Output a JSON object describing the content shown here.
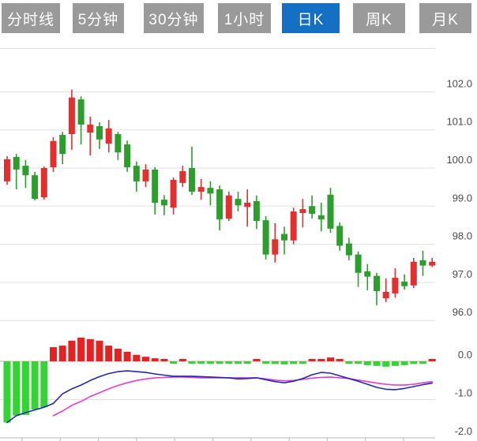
{
  "tabs": [
    {
      "label": "分时线",
      "active": false
    },
    {
      "label": "5分钟",
      "active": false
    },
    {
      "label": "30分钟",
      "active": false
    },
    {
      "label": "1小时",
      "active": false
    },
    {
      "label": "日K",
      "active": true
    },
    {
      "label": "周K",
      "active": false
    },
    {
      "label": "月K",
      "active": false
    }
  ],
  "colors": {
    "tab_bg": "#9a9a9a",
    "tab_active_bg": "#1570c4",
    "tab_text": "#ffffff",
    "up": "#e23030",
    "down": "#2d9e2d",
    "hist_up": "#e52222",
    "hist_down": "#35d435",
    "dif_line": "#2228b0",
    "dea_line": "#e03fd0",
    "grid": "#e0e0e0",
    "axis": "#b5b5b5",
    "zero_line": "#f0a4a4",
    "label_text": "#4a4a4a"
  },
  "chart_data": {
    "type": "candlestick+macd",
    "title": "",
    "price_axis": {
      "ticks": [
        102.0,
        101.0,
        100.0,
        99.0,
        98.0,
        97.0,
        96.0
      ],
      "side": "right"
    },
    "macd_axis": {
      "ticks": [
        0.0,
        -1.0,
        -2.0
      ],
      "side": "right"
    },
    "candles": [
      {
        "o": 99.65,
        "h": 100.31,
        "l": 99.56,
        "c": 100.23
      },
      {
        "o": 100.29,
        "h": 100.37,
        "l": 99.44,
        "c": 99.96
      },
      {
        "o": 100.06,
        "h": 100.21,
        "l": 99.48,
        "c": 99.81
      },
      {
        "o": 99.81,
        "h": 99.9,
        "l": 99.15,
        "c": 99.19
      },
      {
        "o": 99.23,
        "h": 100.04,
        "l": 99.17,
        "c": 100.0
      },
      {
        "o": 100.02,
        "h": 100.81,
        "l": 99.9,
        "c": 100.71
      },
      {
        "o": 100.87,
        "h": 100.95,
        "l": 100.1,
        "c": 100.37
      },
      {
        "o": 100.89,
        "h": 102.06,
        "l": 100.48,
        "c": 101.85
      },
      {
        "o": 101.8,
        "h": 101.88,
        "l": 100.62,
        "c": 101.14
      },
      {
        "o": 100.93,
        "h": 101.35,
        "l": 100.33,
        "c": 101.14
      },
      {
        "o": 101.1,
        "h": 101.2,
        "l": 100.5,
        "c": 100.75
      },
      {
        "o": 100.64,
        "h": 101.26,
        "l": 100.41,
        "c": 101.04
      },
      {
        "o": 100.89,
        "h": 100.95,
        "l": 100.21,
        "c": 100.41
      },
      {
        "o": 100.62,
        "h": 100.72,
        "l": 99.9,
        "c": 100.02
      },
      {
        "o": 100.06,
        "h": 100.17,
        "l": 99.38,
        "c": 99.65
      },
      {
        "o": 99.65,
        "h": 100.1,
        "l": 99.5,
        "c": 99.96
      },
      {
        "o": 99.96,
        "h": 100.02,
        "l": 98.78,
        "c": 99.09
      },
      {
        "o": 99.17,
        "h": 99.29,
        "l": 98.76,
        "c": 99.02
      },
      {
        "o": 98.96,
        "h": 99.75,
        "l": 98.78,
        "c": 99.69
      },
      {
        "o": 99.61,
        "h": 100.06,
        "l": 99.5,
        "c": 99.92
      },
      {
        "o": 100.0,
        "h": 100.56,
        "l": 99.29,
        "c": 99.38
      },
      {
        "o": 99.38,
        "h": 99.71,
        "l": 99.17,
        "c": 99.5
      },
      {
        "o": 99.48,
        "h": 99.65,
        "l": 99.02,
        "c": 99.33
      },
      {
        "o": 99.44,
        "h": 99.54,
        "l": 98.36,
        "c": 98.65
      },
      {
        "o": 98.67,
        "h": 99.38,
        "l": 98.61,
        "c": 99.28
      },
      {
        "o": 99.19,
        "h": 99.38,
        "l": 98.86,
        "c": 99.02
      },
      {
        "o": 98.98,
        "h": 99.44,
        "l": 98.46,
        "c": 99.09
      },
      {
        "o": 99.13,
        "h": 99.28,
        "l": 98.4,
        "c": 98.61
      },
      {
        "o": 98.63,
        "h": 98.74,
        "l": 97.6,
        "c": 97.73
      },
      {
        "o": 97.73,
        "h": 98.55,
        "l": 97.52,
        "c": 98.13
      },
      {
        "o": 98.27,
        "h": 98.46,
        "l": 97.73,
        "c": 98.1
      },
      {
        "o": 98.1,
        "h": 98.96,
        "l": 98.0,
        "c": 98.86
      },
      {
        "o": 98.82,
        "h": 99.19,
        "l": 98.44,
        "c": 98.92
      },
      {
        "o": 99.0,
        "h": 99.28,
        "l": 98.67,
        "c": 98.8
      },
      {
        "o": 98.76,
        "h": 99.09,
        "l": 98.34,
        "c": 98.65
      },
      {
        "o": 99.3,
        "h": 99.48,
        "l": 98.3,
        "c": 98.41
      },
      {
        "o": 98.48,
        "h": 98.57,
        "l": 97.83,
        "c": 97.96
      },
      {
        "o": 98.02,
        "h": 98.17,
        "l": 97.58,
        "c": 97.71
      },
      {
        "o": 97.73,
        "h": 97.81,
        "l": 96.88,
        "c": 97.25
      },
      {
        "o": 97.29,
        "h": 97.48,
        "l": 96.79,
        "c": 97.15
      },
      {
        "o": 97.17,
        "h": 97.25,
        "l": 96.4,
        "c": 96.77
      },
      {
        "o": 96.58,
        "h": 97.1,
        "l": 96.48,
        "c": 96.75
      },
      {
        "o": 96.71,
        "h": 97.37,
        "l": 96.6,
        "c": 97.12
      },
      {
        "o": 97.02,
        "h": 97.21,
        "l": 96.81,
        "c": 96.9
      },
      {
        "o": 96.92,
        "h": 97.64,
        "l": 96.85,
        "c": 97.54
      },
      {
        "o": 97.58,
        "h": 97.83,
        "l": 97.17,
        "c": 97.44
      },
      {
        "o": 97.44,
        "h": 97.64,
        "l": 97.4,
        "c": 97.54
      }
    ],
    "macd": {
      "histogram": [
        -1.6,
        -1.42,
        -1.4,
        -1.26,
        -1.2,
        0.37,
        0.41,
        0.54,
        0.62,
        0.58,
        0.54,
        0.41,
        0.33,
        0.25,
        0.17,
        0.12,
        0.08,
        0.04,
        -0.02,
        0.02,
        -0.01,
        -0.03,
        -0.04,
        -0.04,
        -0.04,
        -0.03,
        -0.02,
        0.03,
        -0.05,
        -0.07,
        -0.08,
        -0.07,
        -0.01,
        0.04,
        0.06,
        0.1,
        0.06,
        -0.02,
        -0.06,
        -0.1,
        -0.12,
        -0.14,
        -0.12,
        -0.1,
        -0.07,
        -0.03,
        0.04
      ],
      "dif": [
        -1.6,
        -1.42,
        -1.34,
        -1.27,
        -1.2,
        -1.1,
        -0.85,
        -0.72,
        -0.62,
        -0.5,
        -0.4,
        -0.32,
        -0.27,
        -0.25,
        -0.27,
        -0.29,
        -0.33,
        -0.36,
        -0.39,
        -0.39,
        -0.39,
        -0.4,
        -0.41,
        -0.42,
        -0.43,
        -0.46,
        -0.45,
        -0.43,
        -0.48,
        -0.53,
        -0.56,
        -0.52,
        -0.45,
        -0.35,
        -0.29,
        -0.31,
        -0.38,
        -0.45,
        -0.52,
        -0.6,
        -0.68,
        -0.73,
        -0.74,
        -0.71,
        -0.66,
        -0.61,
        -0.57
      ],
      "dea": [
        null,
        null,
        null,
        null,
        null,
        -1.42,
        -1.3,
        -1.15,
        -1.05,
        -0.92,
        -0.82,
        -0.72,
        -0.63,
        -0.56,
        -0.5,
        -0.46,
        -0.43,
        -0.42,
        -0.41,
        -0.41,
        -0.42,
        -0.43,
        -0.43,
        -0.43,
        -0.43,
        -0.43,
        -0.43,
        -0.43,
        -0.46,
        -0.49,
        -0.51,
        -0.5,
        -0.47,
        -0.44,
        -0.42,
        -0.41,
        -0.43,
        -0.45,
        -0.49,
        -0.53,
        -0.57,
        -0.6,
        -0.62,
        -0.62,
        -0.6,
        -0.56,
        -0.53
      ]
    }
  }
}
